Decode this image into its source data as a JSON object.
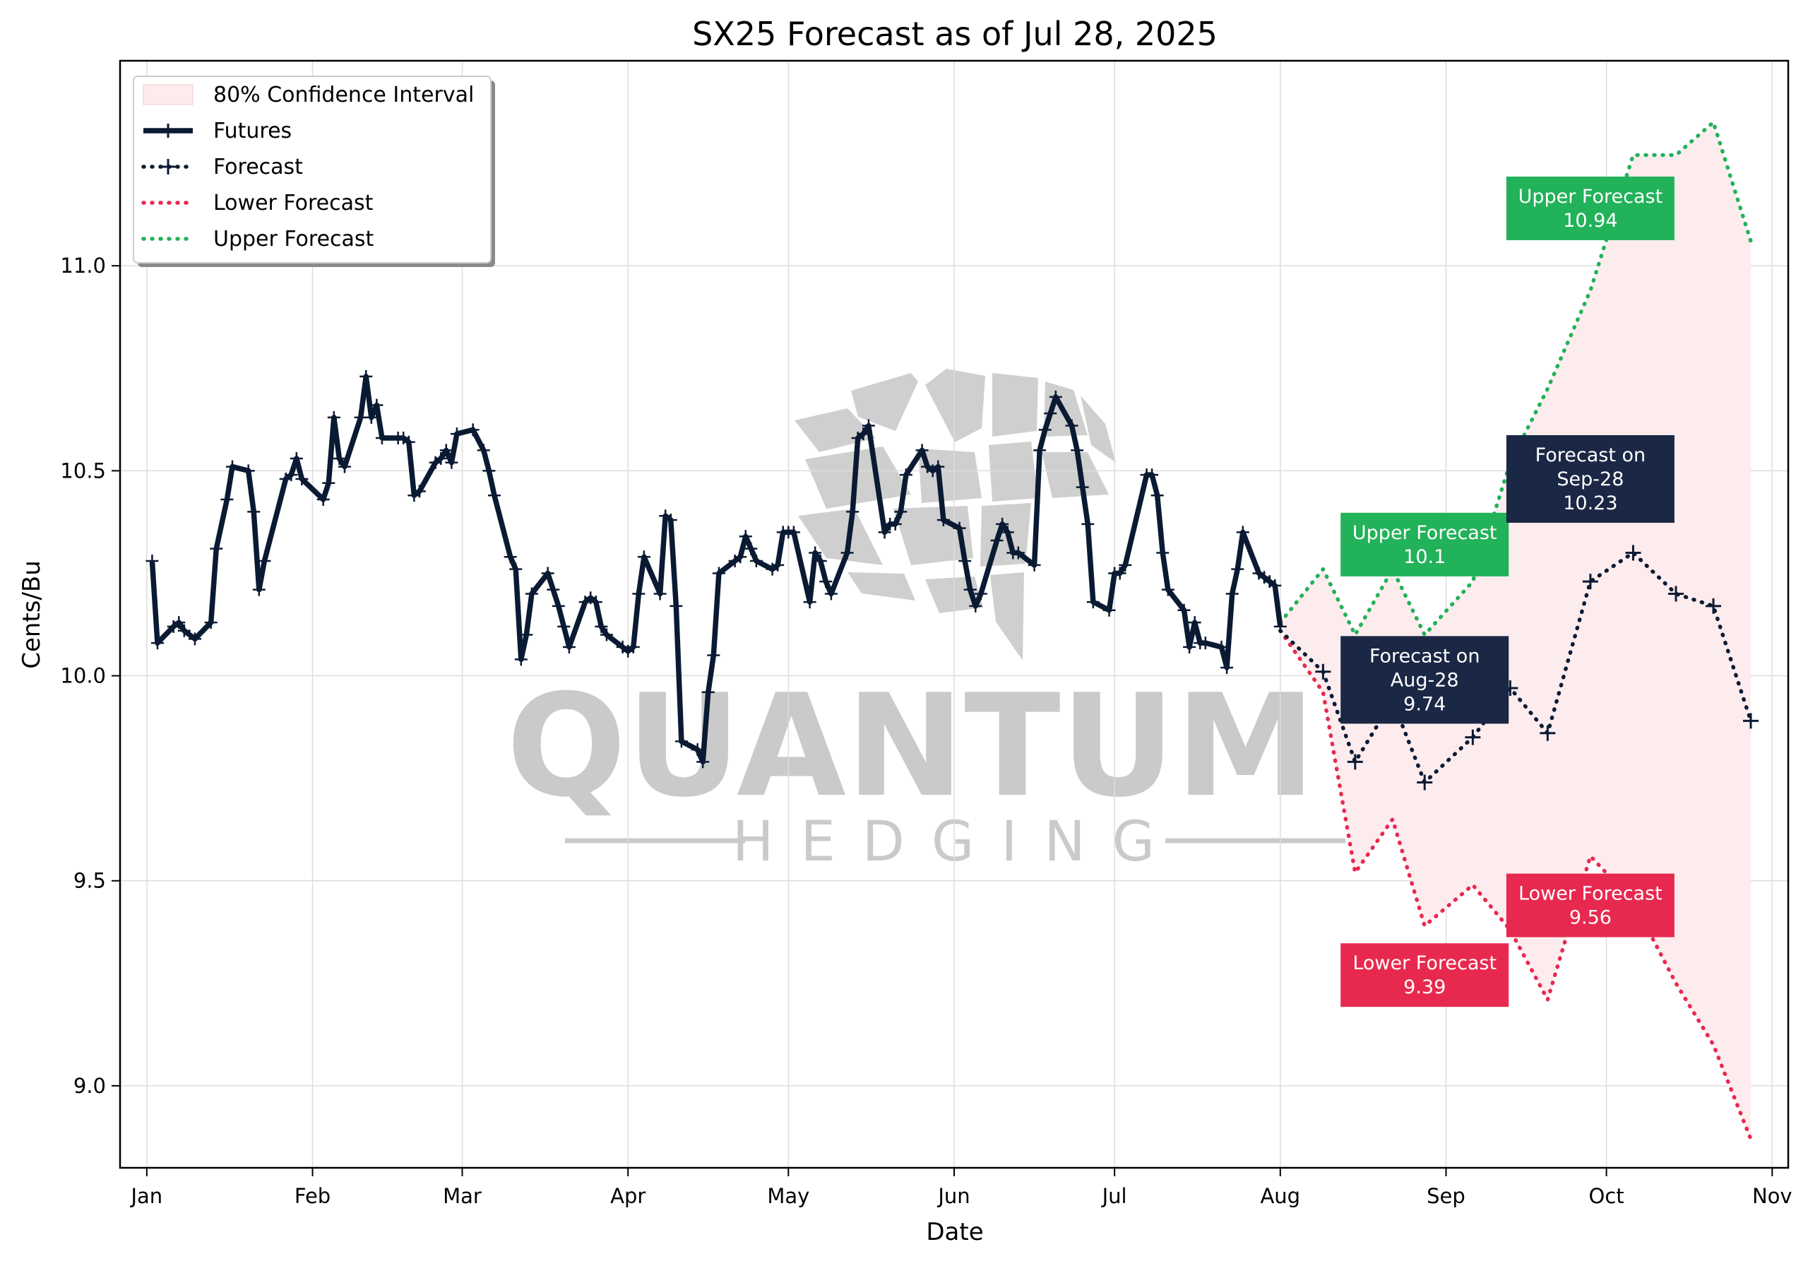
{
  "chart_data": {
    "type": "line",
    "title": "SX25 Forecast as of Jul 28, 2025",
    "xlabel": "Date",
    "ylabel": "Cents/Bu",
    "ylim": [
      8.8,
      11.5
    ],
    "xlim": [
      "2024-12-27",
      "2025-11-04"
    ],
    "grid": true,
    "legend_position": "top-left",
    "x_ticks": [
      {
        "label": "Jan",
        "date": "2025-01-01"
      },
      {
        "label": "Feb",
        "date": "2025-02-01"
      },
      {
        "label": "Mar",
        "date": "2025-03-01"
      },
      {
        "label": "Apr",
        "date": "2025-04-01"
      },
      {
        "label": "May",
        "date": "2025-05-01"
      },
      {
        "label": "Jun",
        "date": "2025-06-01"
      },
      {
        "label": "Jul",
        "date": "2025-07-01"
      },
      {
        "label": "Aug",
        "date": "2025-08-01"
      },
      {
        "label": "Sep",
        "date": "2025-09-01"
      },
      {
        "label": "Oct",
        "date": "2025-10-01"
      },
      {
        "label": "Nov",
        "date": "2025-11-01"
      }
    ],
    "y_ticks": [
      {
        "label": "9.0",
        "value": 9.0
      },
      {
        "label": "9.5",
        "value": 9.5
      },
      {
        "label": "10.0",
        "value": 10.0
      },
      {
        "label": "10.5",
        "value": 10.5
      },
      {
        "label": "11.0",
        "value": 11.0
      }
    ],
    "legend": [
      {
        "label": "80% Confidence Interval",
        "style": "band",
        "color": "#fdecee"
      },
      {
        "label": "Futures",
        "style": "line-marker",
        "color": "#0b1a33"
      },
      {
        "label": "Forecast",
        "style": "dotted-marker",
        "color": "#0b1a33"
      },
      {
        "label": "Lower Forecast",
        "style": "dotted",
        "color": "#e8294f"
      },
      {
        "label": "Upper Forecast",
        "style": "dotted",
        "color": "#22b259"
      }
    ],
    "colors": {
      "futures": "#0b1a33",
      "forecast": "#0b1a33",
      "lower": "#e8294f",
      "upper": "#22b259",
      "band": "#fdecee",
      "grid": "#dddddd"
    },
    "series": [
      {
        "name": "Futures",
        "points": [
          [
            "2025-01-02",
            10.28
          ],
          [
            "2025-01-03",
            10.08
          ],
          [
            "2025-01-06",
            10.12
          ],
          [
            "2025-01-07",
            10.13
          ],
          [
            "2025-01-08",
            10.11
          ],
          [
            "2025-01-10",
            10.09
          ],
          [
            "2025-01-13",
            10.13
          ],
          [
            "2025-01-14",
            10.31
          ],
          [
            "2025-01-16",
            10.43
          ],
          [
            "2025-01-17",
            10.51
          ],
          [
            "2025-01-20",
            10.5
          ],
          [
            "2025-01-21",
            10.4
          ],
          [
            "2025-01-22",
            10.21
          ],
          [
            "2025-01-23",
            10.28
          ],
          [
            "2025-01-27",
            10.48
          ],
          [
            "2025-01-28",
            10.49
          ],
          [
            "2025-01-29",
            10.53
          ],
          [
            "2025-01-30",
            10.48
          ],
          [
            "2025-02-03",
            10.43
          ],
          [
            "2025-02-04",
            10.47
          ],
          [
            "2025-02-05",
            10.63
          ],
          [
            "2025-02-06",
            10.53
          ],
          [
            "2025-02-07",
            10.51
          ],
          [
            "2025-02-10",
            10.63
          ],
          [
            "2025-02-11",
            10.73
          ],
          [
            "2025-02-12",
            10.63
          ],
          [
            "2025-02-13",
            10.66
          ],
          [
            "2025-02-14",
            10.58
          ],
          [
            "2025-02-17",
            10.58
          ],
          [
            "2025-02-18",
            10.58
          ],
          [
            "2025-02-19",
            10.57
          ],
          [
            "2025-02-20",
            10.44
          ],
          [
            "2025-02-21",
            10.45
          ],
          [
            "2025-02-24",
            10.52
          ],
          [
            "2025-02-25",
            10.53
          ],
          [
            "2025-02-26",
            10.55
          ],
          [
            "2025-02-27",
            10.52
          ],
          [
            "2025-02-28",
            10.59
          ],
          [
            "2025-03-03",
            10.6
          ],
          [
            "2025-03-05",
            10.55
          ],
          [
            "2025-03-06",
            10.5
          ],
          [
            "2025-03-07",
            10.44
          ],
          [
            "2025-03-10",
            10.29
          ],
          [
            "2025-03-11",
            10.26
          ],
          [
            "2025-03-12",
            10.04
          ],
          [
            "2025-03-13",
            10.1
          ],
          [
            "2025-03-14",
            10.2
          ],
          [
            "2025-03-17",
            10.25
          ],
          [
            "2025-03-18",
            10.21
          ],
          [
            "2025-03-19",
            10.17
          ],
          [
            "2025-03-20",
            10.12
          ],
          [
            "2025-03-21",
            10.07
          ],
          [
            "2025-03-24",
            10.18
          ],
          [
            "2025-03-25",
            10.19
          ],
          [
            "2025-03-26",
            10.18
          ],
          [
            "2025-03-27",
            10.12
          ],
          [
            "2025-03-28",
            10.1
          ],
          [
            "2025-03-31",
            10.07
          ],
          [
            "2025-04-01",
            10.06
          ],
          [
            "2025-04-02",
            10.07
          ],
          [
            "2025-04-03",
            10.2
          ],
          [
            "2025-04-04",
            10.29
          ],
          [
            "2025-04-07",
            10.2
          ],
          [
            "2025-04-08",
            10.39
          ],
          [
            "2025-04-09",
            10.38
          ],
          [
            "2025-04-10",
            10.17
          ],
          [
            "2025-04-11",
            9.84
          ],
          [
            "2025-04-14",
            9.82
          ],
          [
            "2025-04-15",
            9.79
          ],
          [
            "2025-04-16",
            9.96
          ],
          [
            "2025-04-17",
            10.05
          ],
          [
            "2025-04-18",
            10.25
          ],
          [
            "2025-04-21",
            10.28
          ],
          [
            "2025-04-22",
            10.29
          ],
          [
            "2025-04-23",
            10.34
          ],
          [
            "2025-04-24",
            10.31
          ],
          [
            "2025-04-25",
            10.28
          ],
          [
            "2025-04-28",
            10.26
          ],
          [
            "2025-04-29",
            10.27
          ],
          [
            "2025-04-30",
            10.35
          ],
          [
            "2025-05-01",
            10.35
          ],
          [
            "2025-05-02",
            10.35
          ],
          [
            "2025-05-05",
            10.18
          ],
          [
            "2025-05-06",
            10.3
          ],
          [
            "2025-05-07",
            10.28
          ],
          [
            "2025-05-08",
            10.23
          ],
          [
            "2025-05-09",
            10.2
          ],
          [
            "2025-05-12",
            10.3
          ],
          [
            "2025-05-13",
            10.4
          ],
          [
            "2025-05-14",
            10.58
          ],
          [
            "2025-05-15",
            10.59
          ],
          [
            "2025-05-16",
            10.61
          ],
          [
            "2025-05-19",
            10.35
          ],
          [
            "2025-05-20",
            10.37
          ],
          [
            "2025-05-21",
            10.37
          ],
          [
            "2025-05-22",
            10.4
          ],
          [
            "2025-05-23",
            10.49
          ],
          [
            "2025-05-26",
            10.55
          ],
          [
            "2025-05-27",
            10.51
          ],
          [
            "2025-05-28",
            10.5
          ],
          [
            "2025-05-29",
            10.51
          ],
          [
            "2025-05-30",
            10.38
          ],
          [
            "2025-06-02",
            10.36
          ],
          [
            "2025-06-03",
            10.28
          ],
          [
            "2025-06-04",
            10.21
          ],
          [
            "2025-06-05",
            10.17
          ],
          [
            "2025-06-06",
            10.2
          ],
          [
            "2025-06-09",
            10.33
          ],
          [
            "2025-06-10",
            10.37
          ],
          [
            "2025-06-11",
            10.35
          ],
          [
            "2025-06-12",
            10.3
          ],
          [
            "2025-06-13",
            10.3
          ],
          [
            "2025-06-16",
            10.27
          ],
          [
            "2025-06-17",
            10.55
          ],
          [
            "2025-06-18",
            10.6
          ],
          [
            "2025-06-19",
            10.64
          ],
          [
            "2025-06-20",
            10.68
          ],
          [
            "2025-06-23",
            10.61
          ],
          [
            "2025-06-24",
            10.55
          ],
          [
            "2025-06-25",
            10.46
          ],
          [
            "2025-06-26",
            10.37
          ],
          [
            "2025-06-27",
            10.18
          ],
          [
            "2025-06-30",
            10.16
          ],
          [
            "2025-07-01",
            10.25
          ],
          [
            "2025-07-02",
            10.25
          ],
          [
            "2025-07-03",
            10.27
          ],
          [
            "2025-07-07",
            10.49
          ],
          [
            "2025-07-08",
            10.49
          ],
          [
            "2025-07-09",
            10.44
          ],
          [
            "2025-07-10",
            10.3
          ],
          [
            "2025-07-11",
            10.21
          ],
          [
            "2025-07-14",
            10.16
          ],
          [
            "2025-07-15",
            10.07
          ],
          [
            "2025-07-16",
            10.13
          ],
          [
            "2025-07-17",
            10.08
          ],
          [
            "2025-07-18",
            10.08
          ],
          [
            "2025-07-21",
            10.07
          ],
          [
            "2025-07-22",
            10.02
          ],
          [
            "2025-07-23",
            10.2
          ],
          [
            "2025-07-24",
            10.26
          ],
          [
            "2025-07-25",
            10.35
          ],
          [
            "2025-07-28",
            10.25
          ],
          [
            "2025-07-29",
            10.24
          ],
          [
            "2025-07-30",
            10.23
          ],
          [
            "2025-07-31",
            10.22
          ],
          [
            "2025-08-01",
            10.12
          ]
        ]
      },
      {
        "name": "Forecast",
        "points": [
          [
            "2025-08-01",
            10.11
          ],
          [
            "2025-08-09",
            10.01
          ],
          [
            "2025-08-15",
            9.79
          ],
          [
            "2025-08-22",
            9.94
          ],
          [
            "2025-08-28",
            9.74
          ],
          [
            "2025-09-06",
            9.85
          ],
          [
            "2025-09-13",
            9.97
          ],
          [
            "2025-09-20",
            9.86
          ],
          [
            "2025-09-28",
            10.23
          ],
          [
            "2025-10-06",
            10.3
          ],
          [
            "2025-10-14",
            10.2
          ],
          [
            "2025-10-21",
            10.17
          ],
          [
            "2025-10-28",
            9.89
          ]
        ]
      },
      {
        "name": "Lower Forecast",
        "points": [
          [
            "2025-08-01",
            10.11
          ],
          [
            "2025-08-09",
            9.96
          ],
          [
            "2025-08-15",
            9.52
          ],
          [
            "2025-08-22",
            9.65
          ],
          [
            "2025-08-28",
            9.39
          ],
          [
            "2025-09-06",
            9.49
          ],
          [
            "2025-09-13",
            9.38
          ],
          [
            "2025-09-20",
            9.21
          ],
          [
            "2025-09-28",
            9.56
          ],
          [
            "2025-10-06",
            9.45
          ],
          [
            "2025-10-14",
            9.25
          ],
          [
            "2025-10-21",
            9.1
          ],
          [
            "2025-10-28",
            8.87
          ]
        ]
      },
      {
        "name": "Upper Forecast",
        "points": [
          [
            "2025-08-01",
            10.13
          ],
          [
            "2025-08-09",
            10.26
          ],
          [
            "2025-08-15",
            10.1
          ],
          [
            "2025-08-22",
            10.26
          ],
          [
            "2025-08-28",
            10.1
          ],
          [
            "2025-09-06",
            10.23
          ],
          [
            "2025-09-13",
            10.52
          ],
          [
            "2025-09-20",
            10.7
          ],
          [
            "2025-09-28",
            10.94
          ],
          [
            "2025-10-06",
            11.27
          ],
          [
            "2025-10-14",
            11.27
          ],
          [
            "2025-10-21",
            11.35
          ],
          [
            "2025-10-28",
            11.06
          ]
        ]
      }
    ],
    "confidence_band": {
      "name": "80% Confidence Interval",
      "points": [
        [
          "2025-08-01",
          10.11,
          10.13
        ],
        [
          "2025-08-09",
          9.96,
          10.26
        ],
        [
          "2025-08-15",
          9.52,
          10.1
        ],
        [
          "2025-08-22",
          9.65,
          10.26
        ],
        [
          "2025-08-28",
          9.39,
          10.1
        ],
        [
          "2025-09-06",
          9.49,
          10.23
        ],
        [
          "2025-09-13",
          9.38,
          10.52
        ],
        [
          "2025-09-20",
          9.21,
          10.7
        ],
        [
          "2025-09-28",
          9.56,
          10.94
        ],
        [
          "2025-10-06",
          9.45,
          11.27
        ],
        [
          "2025-10-14",
          9.25,
          11.27
        ],
        [
          "2025-10-21",
          9.1,
          11.35
        ],
        [
          "2025-10-28",
          8.87,
          11.06
        ]
      ]
    },
    "annotations": [
      {
        "lines": [
          "Upper Forecast",
          "10.94"
        ],
        "color": "#22b259",
        "date": "2025-09-28",
        "value": 11.14
      },
      {
        "lines": [
          "Upper Forecast",
          "10.1"
        ],
        "color": "#22b259",
        "date": "2025-08-28",
        "value": 10.32
      },
      {
        "lines": [
          "Forecast on",
          "Sep-28",
          "10.23"
        ],
        "color": "#1a2845",
        "date": "2025-09-28",
        "value": 10.48
      },
      {
        "lines": [
          "Forecast on",
          "Aug-28",
          "9.74"
        ],
        "color": "#1a2845",
        "date": "2025-08-28",
        "value": 9.99
      },
      {
        "lines": [
          "Lower Forecast",
          "9.56"
        ],
        "color": "#e8294f",
        "date": "2025-09-28",
        "value": 9.44
      },
      {
        "lines": [
          "Lower Forecast",
          "9.39"
        ],
        "color": "#e8294f",
        "date": "2025-08-28",
        "value": 9.27
      }
    ]
  },
  "watermark": {
    "brand": "QUANTUM",
    "tagline": "HEDGING"
  }
}
